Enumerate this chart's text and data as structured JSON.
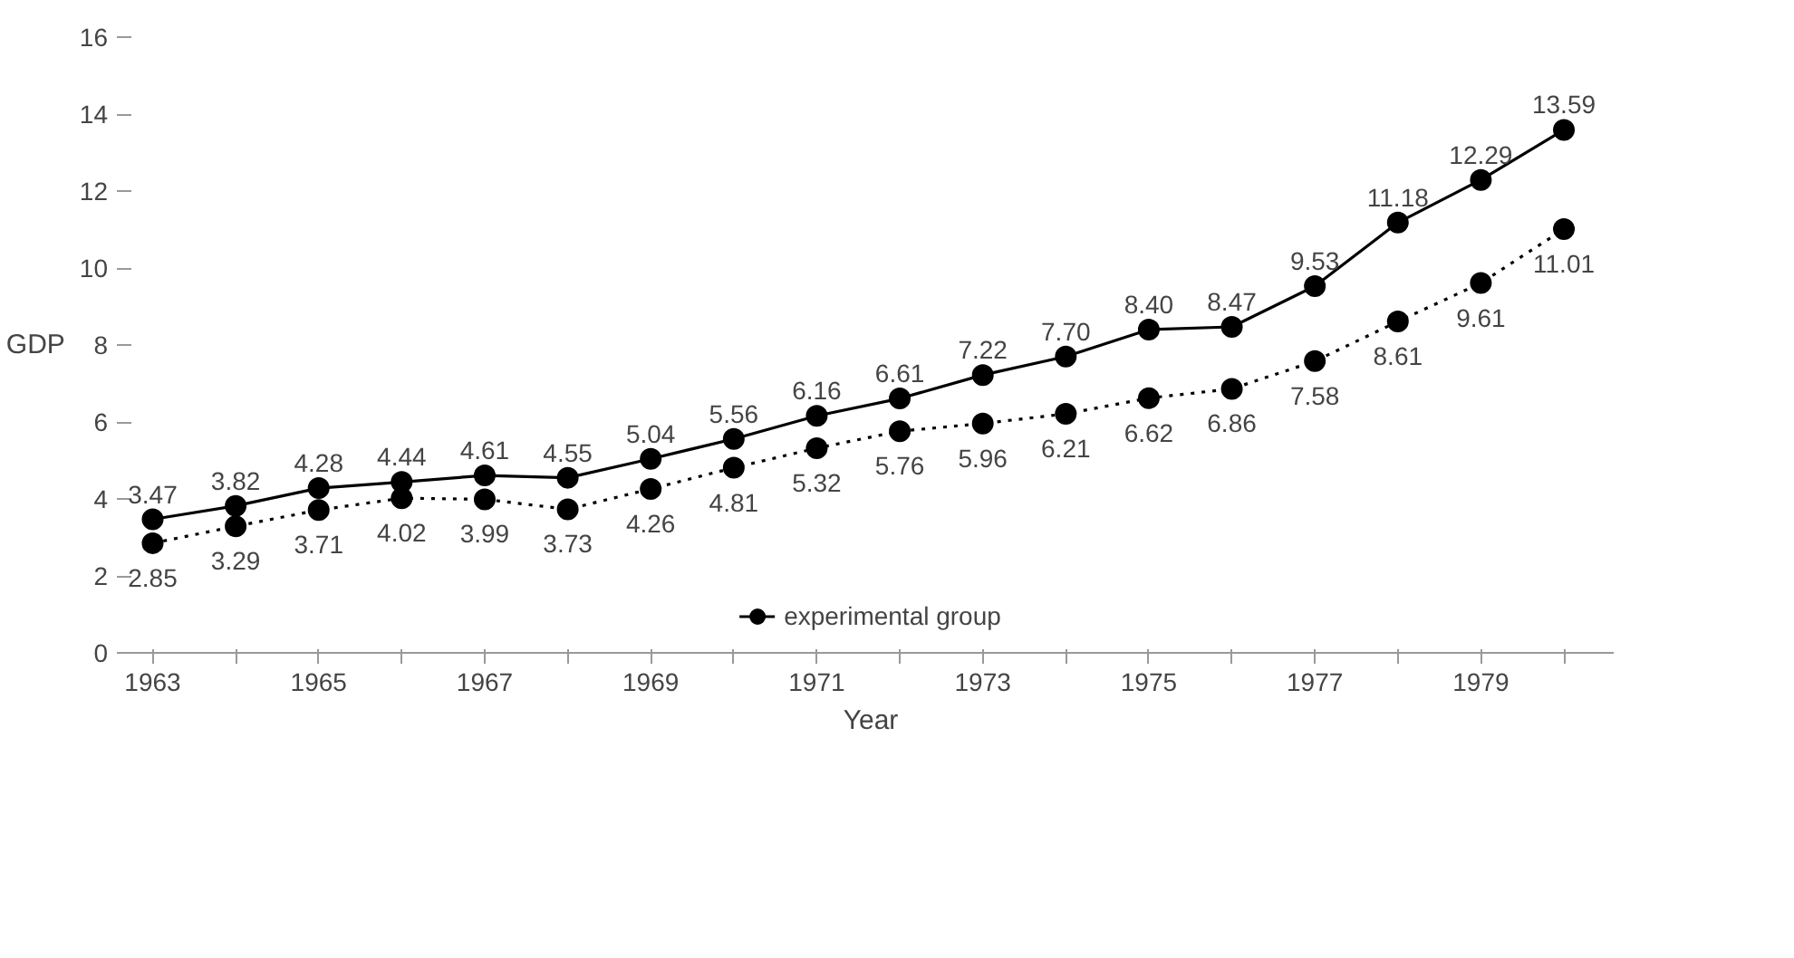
{
  "chart_data": {
    "type": "line",
    "xlabel": "Year",
    "ylabel": "GDP",
    "x": [
      1963,
      1964,
      1965,
      1966,
      1967,
      1968,
      1969,
      1970,
      1971,
      1972,
      1973,
      1974,
      1975,
      1976,
      1977,
      1978,
      1979,
      1980
    ],
    "series": [
      {
        "name": "experimental group",
        "color": "#000000",
        "line_style": "solid",
        "values": [
          3.47,
          3.82,
          4.28,
          4.44,
          4.61,
          4.55,
          5.04,
          5.56,
          6.16,
          6.61,
          7.22,
          7.7,
          8.4,
          8.47,
          9.53,
          11.18,
          12.29,
          13.59
        ],
        "value_labels": [
          "3.47",
          "3.82",
          "4.28",
          "4.44",
          "4.61",
          "4.55",
          "5.04",
          "5.56",
          "6.16",
          "6.61",
          "7.22",
          "7.70",
          "8.40",
          "8.47",
          "9.53",
          "11.18",
          "12.29",
          "13.59"
        ]
      },
      {
        "color": "#000000",
        "line_style": "dotted",
        "values": [
          2.85,
          3.29,
          3.71,
          4.02,
          3.99,
          3.73,
          4.26,
          4.81,
          5.32,
          5.76,
          5.96,
          6.21,
          6.62,
          6.86,
          7.58,
          8.61,
          9.61,
          11.01
        ],
        "value_labels": [
          "2.85",
          "3.29",
          "3.71",
          "4.02",
          "3.99",
          "3.73",
          "4.26",
          "4.81",
          "5.32",
          "5.76",
          "5.96",
          "6.21",
          "6.62",
          "6.86",
          "7.58",
          "8.61",
          "9.61",
          "11.01"
        ]
      }
    ],
    "xlim": [
      1962.7,
      1980.6
    ],
    "xticks": [
      1963,
      {
        "value": 1964,
        "label": null
      },
      1965,
      {
        "value": 1966,
        "label": null
      },
      1967,
      {
        "value": 1968,
        "label": null
      },
      1969,
      {
        "value": 1970,
        "label": null
      },
      1971,
      {
        "value": 1972,
        "label": null
      },
      1973,
      {
        "value": 1974,
        "label": null
      },
      1975,
      {
        "value": 1976,
        "label": null
      },
      1977,
      {
        "value": 1978,
        "label": null
      },
      1979,
      {
        "value": 1980,
        "label": null
      }
    ],
    "ylim": [
      0,
      16
    ],
    "yticks": [
      0,
      2,
      4,
      6,
      8,
      10,
      12,
      14,
      16
    ],
    "marker": "circle",
    "grid": false,
    "legend": "bottom"
  }
}
